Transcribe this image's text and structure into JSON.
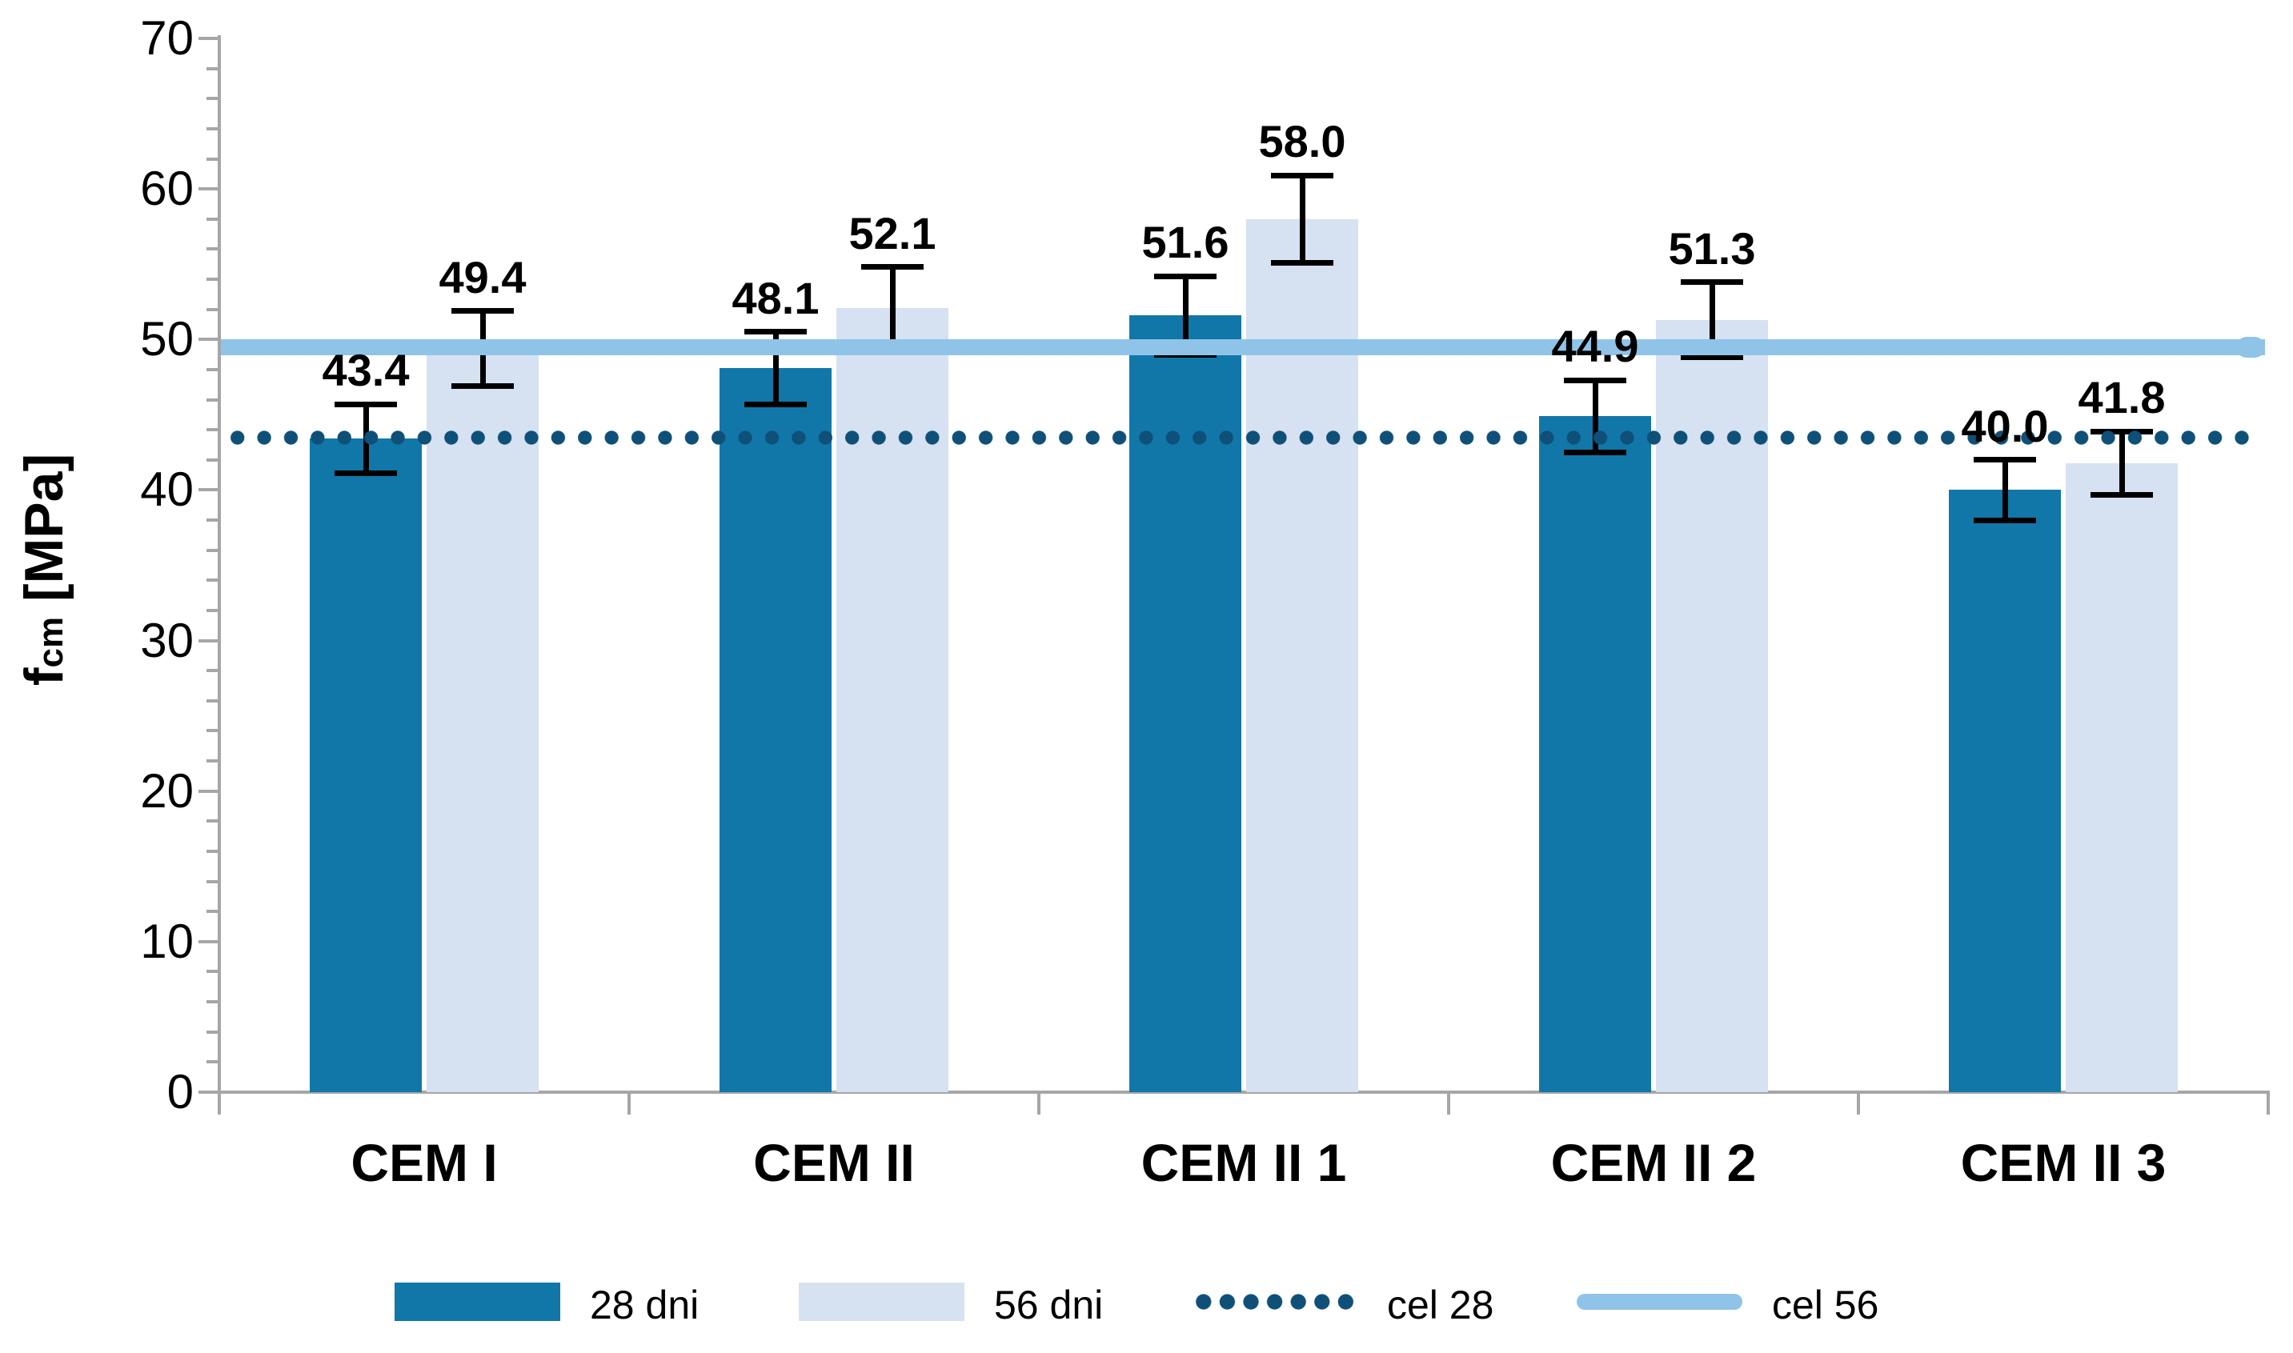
{
  "chart_data": {
    "type": "bar",
    "title": "",
    "ylabel": {
      "base": "f",
      "sub": "cm",
      "unit": " [MPa]"
    },
    "ylim": [
      0,
      70
    ],
    "y_ticks": [
      "0",
      "10",
      "20",
      "30",
      "40",
      "50",
      "60",
      "70"
    ],
    "y_tick_step": 10,
    "y_minor_tick_step": 2,
    "grid": false,
    "axis_color": "#A6A6A6",
    "background": "#FFFFFF",
    "categories": [
      "CEM I",
      "CEM II",
      "CEM II 1",
      "CEM II 2",
      "CEM II 3"
    ],
    "series": [
      {
        "name": "28 dni",
        "color": "#1177A9",
        "values": [
          43.4,
          48.1,
          51.6,
          44.9,
          40.0
        ],
        "labels": [
          "43.4",
          "48.1",
          "51.6",
          "44.9",
          "40.0"
        ],
        "err": [
          2.3,
          2.4,
          2.6,
          2.4,
          2.0
        ]
      },
      {
        "name": "56 dni",
        "color": "#D6E1F2",
        "values": [
          49.4,
          52.1,
          58.0,
          51.3,
          41.8
        ],
        "labels": [
          "49.4",
          "52.1",
          "58.0",
          "51.3",
          "41.8"
        ],
        "err": [
          2.5,
          2.7,
          2.9,
          2.5,
          2.1
        ]
      }
    ],
    "ref_lines": [
      {
        "name": "cel 28",
        "value": 43.5,
        "style": "dotted",
        "color": "#0F5078"
      },
      {
        "name": "cel 56",
        "value": 49.5,
        "style": "solid",
        "color": "#8FC4E8"
      }
    ],
    "legend": {
      "position": "bottom",
      "entries": [
        {
          "label": "28 dni",
          "marker": "bar",
          "color": "#1177A9"
        },
        {
          "label": "56 dni",
          "marker": "bar",
          "color": "#D6E1F2"
        },
        {
          "label": "cel 28",
          "marker": "dotted-line",
          "color": "#0F5078"
        },
        {
          "label": "cel 56",
          "marker": "thick-line",
          "color": "#8FC4E8"
        }
      ]
    }
  }
}
